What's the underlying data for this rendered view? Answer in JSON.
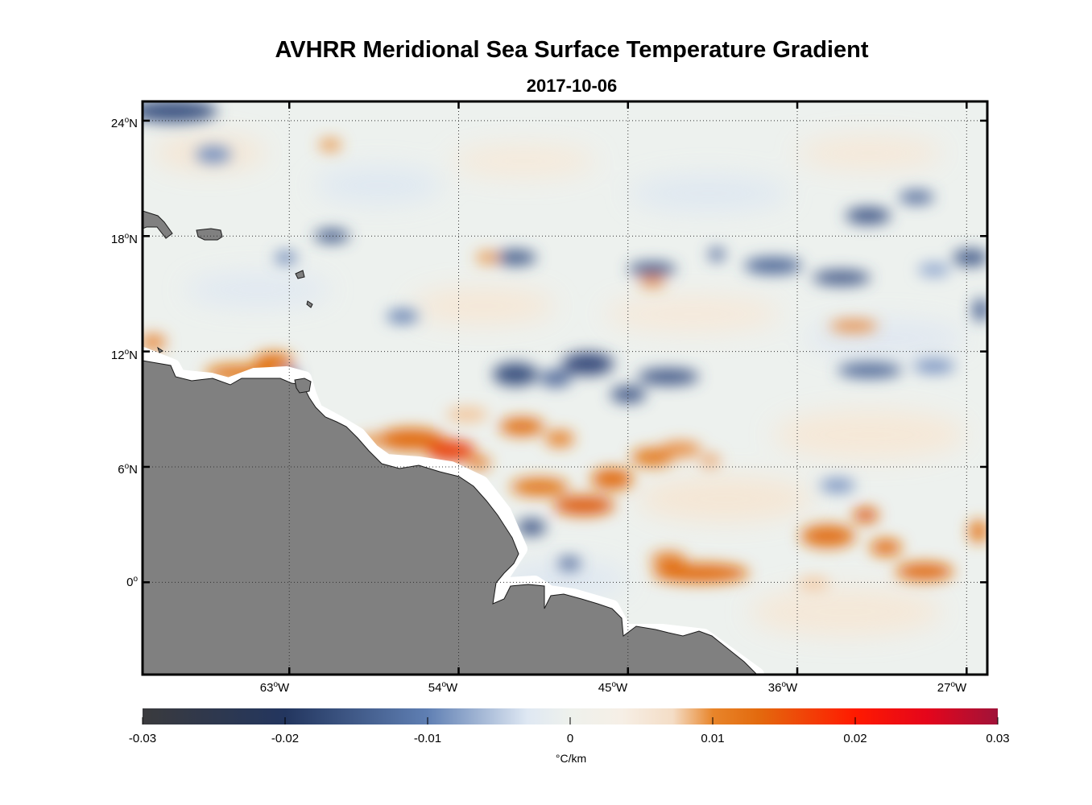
{
  "title": "AVHRR Meridional Sea Surface Temperature Gradient",
  "date": "2017-10-06",
  "chart_data": {
    "type": "heatmap",
    "title": "AVHRR Meridional Sea Surface Temperature Gradient",
    "subtitle": "2017-10-06",
    "variable": "Meridional SST gradient",
    "units": "°C/km",
    "lon_range": [
      -70.8,
      -25.9
    ],
    "lat_range": [
      -4.8,
      25.0
    ],
    "lon_ticks": [
      "63",
      "54",
      "45",
      "36",
      "27"
    ],
    "lon_tick_values": [
      -63,
      -54,
      -45,
      -36,
      -27
    ],
    "lon_hemisphere": "W",
    "lat_ticks": [
      "24",
      "18",
      "12",
      "6",
      "0"
    ],
    "lat_tick_values": [
      24,
      18,
      12,
      6,
      0
    ],
    "lat_hemisphere": "N",
    "colorbar": {
      "min": -0.03,
      "max": 0.03,
      "ticks": [
        "-0.03",
        "-0.02",
        "-0.01",
        "0",
        "0.01",
        "0.02",
        "0.03"
      ],
      "label": "°C/km",
      "colors": [
        "#3a3a3d",
        "#23365f",
        "#5f7fb3",
        "#dfe8f3",
        "#f6efe6",
        "#f4a55c",
        "#e36a0e",
        "#ff1a00",
        "#e5051b",
        "#a01339"
      ]
    },
    "features": [
      {
        "lon": -43.0,
        "lat": 6.0,
        "value": 0.012
      },
      {
        "lon": -53.5,
        "lat": 7.2,
        "value": 0.016
      },
      {
        "lon": -47.5,
        "lat": 8.1,
        "value": 0.01
      },
      {
        "lon": -39.0,
        "lat": 0.0,
        "value": 0.011
      },
      {
        "lon": -29.0,
        "lat": 0.8,
        "value": 0.011
      },
      {
        "lon": -31.5,
        "lat": 2.2,
        "value": 0.012
      },
      {
        "lon": -65.0,
        "lat": 11.2,
        "value": 0.012
      },
      {
        "lon": -45.5,
        "lat": 11.2,
        "value": -0.022
      },
      {
        "lon": -49.0,
        "lat": 10.5,
        "value": -0.02
      },
      {
        "lon": -42.0,
        "lat": 10.3,
        "value": -0.017
      },
      {
        "lon": -68.5,
        "lat": 24.3,
        "value": -0.02
      },
      {
        "lon": -41.5,
        "lat": 16.5,
        "value": -0.018
      },
      {
        "lon": -30.0,
        "lat": 18.5,
        "value": -0.016
      },
      {
        "lon": -32.0,
        "lat": 16.0,
        "value": -0.016
      },
      {
        "lon": -27.5,
        "lat": 16.8,
        "value": -0.015
      },
      {
        "lon": -60.0,
        "lat": 18.1,
        "value": -0.017
      },
      {
        "lon": -51.5,
        "lat": 17.0,
        "value": -0.014
      },
      {
        "lon": -48.0,
        "lat": 2.6,
        "value": -0.014
      },
      {
        "lon": -67.0,
        "lat": 22.0,
        "value": -0.012
      },
      {
        "lon": -34.0,
        "lat": 10.5,
        "value": -0.012
      },
      {
        "lon": -27.0,
        "lat": 6.8,
        "value": 0.006
      },
      {
        "lon": -34.0,
        "lat": 14.0,
        "value": 0.008
      },
      {
        "lon": -62.0,
        "lat": 23.0,
        "value": 0.009
      },
      {
        "lon": -51.0,
        "lat": 17.0,
        "value": 0.009
      },
      {
        "lon": -43.5,
        "lat": 15.9,
        "value": 0.008
      }
    ]
  }
}
